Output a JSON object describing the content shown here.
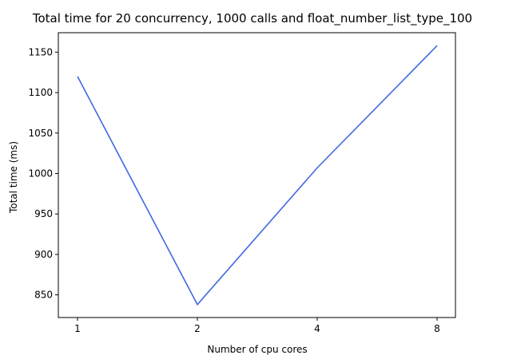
{
  "chart_data": {
    "type": "line",
    "title": "Total time for 20 concurrency, 1000 calls and float_number_list_type_100",
    "xlabel": "Number of cpu cores",
    "ylabel": "Total time (ms)",
    "x_scale": "log2",
    "x": [
      1,
      2,
      4,
      8
    ],
    "xticks": [
      "1",
      "2",
      "4",
      "8"
    ],
    "yticks": [
      850,
      900,
      950,
      1000,
      1050,
      1100,
      1150
    ],
    "ylim": [
      822,
      1174
    ],
    "grid": false,
    "series": [
      {
        "values": [
          1120,
          838,
          1007,
          1158
        ]
      }
    ],
    "colors": {
      "line": "#4169e1"
    }
  }
}
